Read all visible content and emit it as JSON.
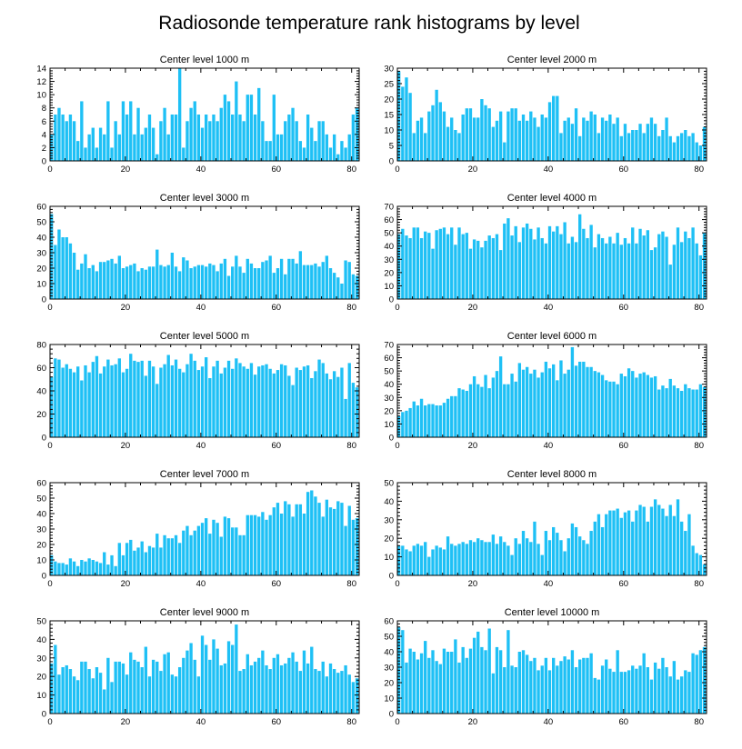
{
  "title": "Radiosonde temperature rank histograms by level",
  "bar_color": "#1ec0f5",
  "chart_data": [
    {
      "type": "bar",
      "title": "Center level 1000 m",
      "xlim": [
        0,
        82
      ],
      "ylim": [
        0,
        14
      ],
      "xticks": [
        0,
        20,
        40,
        60,
        80
      ],
      "yticks": [
        0,
        2,
        4,
        6,
        8,
        10,
        12,
        14
      ],
      "values": [
        4,
        7,
        8,
        7,
        6,
        7,
        6,
        3,
        9,
        2,
        4,
        5,
        2,
        5,
        4,
        9,
        2,
        6,
        4,
        9,
        7,
        9,
        4,
        8,
        4,
        5,
        7,
        5,
        1,
        6,
        8,
        4,
        7,
        7,
        14,
        2,
        6,
        8,
        9,
        7,
        5,
        7,
        6,
        7,
        6,
        8,
        10,
        9,
        7,
        12,
        7,
        6,
        10,
        10,
        7,
        11,
        6,
        3,
        3,
        10,
        4,
        4,
        6,
        7,
        8,
        6,
        3,
        2,
        7,
        5,
        3,
        6,
        6,
        4,
        2,
        4,
        1,
        3,
        2,
        4,
        7,
        8
      ]
    },
    {
      "type": "bar",
      "title": "Center level 2000 m",
      "xlim": [
        0,
        82
      ],
      "ylim": [
        0,
        30
      ],
      "xticks": [
        0,
        20,
        40,
        60,
        80
      ],
      "yticks": [
        0,
        5,
        10,
        15,
        20,
        25,
        30
      ],
      "values": [
        29,
        24,
        27,
        22,
        9,
        13,
        14,
        9,
        16,
        18,
        23,
        19,
        16,
        11,
        14,
        10,
        9,
        15,
        17,
        17,
        14,
        14,
        20,
        18,
        17,
        11,
        13,
        16,
        6,
        16,
        17,
        17,
        13,
        15,
        13,
        16,
        14,
        11,
        15,
        14,
        19,
        21,
        21,
        9,
        13,
        14,
        12,
        17,
        8,
        14,
        13,
        16,
        15,
        9,
        14,
        13,
        15,
        12,
        14,
        8,
        12,
        9,
        10,
        10,
        12,
        9,
        12,
        14,
        12,
        8,
        10,
        14,
        8,
        6,
        8,
        9,
        10,
        8,
        9,
        6,
        5,
        11
      ]
    },
    {
      "type": "bar",
      "title": "Center level 3000 m",
      "xlim": [
        0,
        82
      ],
      "ylim": [
        0,
        60
      ],
      "xticks": [
        0,
        20,
        40,
        60,
        80
      ],
      "yticks": [
        0,
        10,
        20,
        30,
        40,
        50,
        60
      ],
      "values": [
        55,
        35,
        45,
        40,
        40,
        36,
        30,
        19,
        23,
        29,
        20,
        22,
        18,
        24,
        24,
        25,
        26,
        23,
        28,
        20,
        21,
        22,
        23,
        18,
        20,
        19,
        21,
        21,
        32,
        22,
        21,
        22,
        30,
        21,
        18,
        27,
        25,
        20,
        21,
        22,
        22,
        21,
        23,
        22,
        18,
        23,
        26,
        15,
        21,
        28,
        21,
        17,
        26,
        23,
        20,
        20,
        24,
        25,
        28,
        17,
        20,
        26,
        16,
        26,
        26,
        23,
        31,
        22,
        22,
        22,
        23,
        21,
        24,
        28,
        20,
        17,
        14,
        10,
        25,
        24,
        16,
        15
      ]
    },
    {
      "type": "bar",
      "title": "Center level 4000 m",
      "xlim": [
        0,
        82
      ],
      "ylim": [
        0,
        70
      ],
      "xticks": [
        0,
        20,
        40,
        60,
        80
      ],
      "yticks": [
        0,
        10,
        20,
        30,
        40,
        50,
        60,
        70
      ],
      "values": [
        49,
        53,
        48,
        46,
        54,
        54,
        46,
        51,
        50,
        38,
        52,
        53,
        54,
        49,
        54,
        41,
        54,
        49,
        50,
        38,
        45,
        44,
        39,
        44,
        48,
        46,
        49,
        37,
        57,
        61,
        48,
        55,
        43,
        54,
        57,
        53,
        45,
        54,
        46,
        42,
        55,
        51,
        55,
        49,
        58,
        42,
        47,
        43,
        64,
        53,
        46,
        56,
        39,
        49,
        46,
        42,
        47,
        42,
        50,
        41,
        46,
        42,
        54,
        42,
        53,
        48,
        52,
        37,
        39,
        49,
        51,
        47,
        26,
        41,
        54,
        43,
        51,
        46,
        54,
        42,
        33,
        50
      ]
    },
    {
      "type": "bar",
      "title": "Center level 5000 m",
      "xlim": [
        0,
        82
      ],
      "ylim": [
        0,
        80
      ],
      "xticks": [
        0,
        20,
        40,
        60,
        80
      ],
      "yticks": [
        0,
        20,
        40,
        60,
        80
      ],
      "values": [
        52,
        68,
        67,
        60,
        63,
        59,
        56,
        61,
        49,
        62,
        56,
        65,
        70,
        55,
        61,
        67,
        62,
        63,
        68,
        56,
        59,
        72,
        66,
        65,
        66,
        53,
        66,
        61,
        46,
        60,
        63,
        71,
        62,
        67,
        59,
        56,
        63,
        72,
        66,
        58,
        61,
        69,
        51,
        61,
        66,
        55,
        60,
        66,
        59,
        68,
        64,
        61,
        59,
        64,
        54,
        61,
        62,
        63,
        59,
        55,
        58,
        63,
        62,
        53,
        45,
        60,
        58,
        61,
        62,
        51,
        57,
        67,
        64,
        55,
        50,
        57,
        52,
        60,
        33,
        64,
        47,
        43
      ]
    },
    {
      "type": "bar",
      "title": "Center level 6000 m",
      "xlim": [
        0,
        82
      ],
      "ylim": [
        0,
        70
      ],
      "xticks": [
        0,
        20,
        40,
        60,
        80
      ],
      "yticks": [
        0,
        10,
        20,
        30,
        40,
        50,
        60,
        70
      ],
      "values": [
        16,
        19,
        20,
        22,
        27,
        24,
        29,
        24,
        25,
        25,
        24,
        24,
        26,
        29,
        31,
        31,
        37,
        36,
        35,
        40,
        46,
        40,
        38,
        47,
        37,
        45,
        50,
        61,
        40,
        40,
        48,
        42,
        56,
        51,
        53,
        48,
        51,
        45,
        49,
        57,
        52,
        55,
        43,
        58,
        48,
        51,
        68,
        54,
        57,
        57,
        53,
        53,
        50,
        49,
        47,
        43,
        42,
        42,
        40,
        48,
        46,
        52,
        50,
        45,
        48,
        49,
        47,
        45,
        46,
        36,
        39,
        37,
        44,
        39,
        37,
        35,
        40,
        37,
        36,
        36,
        40,
        38
      ]
    },
    {
      "type": "bar",
      "title": "Center level 7000 m",
      "xlim": [
        0,
        82
      ],
      "ylim": [
        0,
        60
      ],
      "xticks": [
        0,
        20,
        40,
        60,
        80
      ],
      "yticks": [
        0,
        10,
        20,
        30,
        40,
        50,
        60
      ],
      "values": [
        13,
        9,
        8,
        8,
        7,
        11,
        9,
        6,
        10,
        9,
        11,
        10,
        9,
        8,
        15,
        7,
        13,
        6,
        21,
        13,
        21,
        23,
        16,
        18,
        22,
        15,
        19,
        18,
        27,
        18,
        26,
        24,
        24,
        26,
        21,
        29,
        32,
        26,
        29,
        32,
        34,
        37,
        27,
        36,
        34,
        25,
        38,
        37,
        31,
        31,
        26,
        26,
        39,
        39,
        39,
        38,
        41,
        36,
        39,
        44,
        47,
        40,
        48,
        46,
        38,
        46,
        46,
        40,
        54,
        55,
        51,
        47,
        38,
        49,
        44,
        43,
        48,
        47,
        32,
        45,
        36,
        37
      ]
    },
    {
      "type": "bar",
      "title": "Center level 8000 m",
      "xlim": [
        0,
        82
      ],
      "ylim": [
        0,
        50
      ],
      "xticks": [
        0,
        20,
        40,
        60,
        80
      ],
      "yticks": [
        0,
        10,
        20,
        30,
        40,
        50
      ],
      "values": [
        16,
        16,
        14,
        13,
        16,
        17,
        16,
        18,
        10,
        14,
        16,
        15,
        14,
        21,
        17,
        16,
        17,
        18,
        17,
        19,
        18,
        20,
        19,
        18,
        18,
        22,
        17,
        21,
        18,
        16,
        11,
        20,
        17,
        24,
        20,
        18,
        29,
        17,
        11,
        24,
        19,
        26,
        23,
        19,
        13,
        20,
        28,
        26,
        21,
        19,
        17,
        24,
        29,
        33,
        26,
        33,
        35,
        35,
        36,
        31,
        34,
        35,
        29,
        35,
        38,
        37,
        29,
        37,
        41,
        38,
        36,
        32,
        38,
        32,
        41,
        29,
        24,
        33,
        16,
        12,
        11,
        6
      ]
    },
    {
      "type": "bar",
      "title": "Center level 9000 m",
      "xlim": [
        0,
        82
      ],
      "ylim": [
        0,
        50
      ],
      "xticks": [
        0,
        20,
        40,
        60,
        80
      ],
      "yticks": [
        0,
        10,
        20,
        30,
        40,
        50
      ],
      "values": [
        27,
        37,
        21,
        25,
        26,
        24,
        20,
        18,
        28,
        28,
        24,
        19,
        25,
        22,
        13,
        30,
        17,
        28,
        28,
        27,
        21,
        33,
        29,
        28,
        25,
        36,
        20,
        29,
        28,
        23,
        32,
        33,
        21,
        20,
        25,
        30,
        34,
        38,
        29,
        20,
        42,
        37,
        29,
        40,
        35,
        26,
        27,
        39,
        37,
        48,
        23,
        24,
        32,
        26,
        28,
        30,
        34,
        26,
        24,
        30,
        32,
        26,
        27,
        30,
        33,
        28,
        23,
        34,
        27,
        36,
        24,
        23,
        28,
        20,
        27,
        24,
        22,
        23,
        26,
        21,
        17,
        19
      ]
    },
    {
      "type": "bar",
      "title": "Center level 10000 m",
      "xlim": [
        0,
        82
      ],
      "ylim": [
        0,
        60
      ],
      "xticks": [
        0,
        20,
        40,
        60,
        80
      ],
      "yticks": [
        0,
        10,
        20,
        30,
        40,
        50,
        60
      ],
      "values": [
        56,
        54,
        33,
        42,
        40,
        35,
        39,
        47,
        36,
        41,
        34,
        32,
        42,
        40,
        40,
        48,
        33,
        43,
        36,
        42,
        49,
        53,
        43,
        41,
        55,
        26,
        43,
        41,
        30,
        54,
        31,
        30,
        40,
        41,
        38,
        34,
        36,
        28,
        31,
        36,
        28,
        36,
        31,
        34,
        37,
        35,
        41,
        30,
        35,
        36,
        36,
        39,
        23,
        22,
        31,
        35,
        29,
        27,
        41,
        27,
        27,
        28,
        31,
        29,
        31,
        39,
        30,
        22,
        33,
        29,
        36,
        30,
        24,
        34,
        22,
        24,
        28,
        27,
        39,
        38,
        41,
        43
      ]
    }
  ]
}
